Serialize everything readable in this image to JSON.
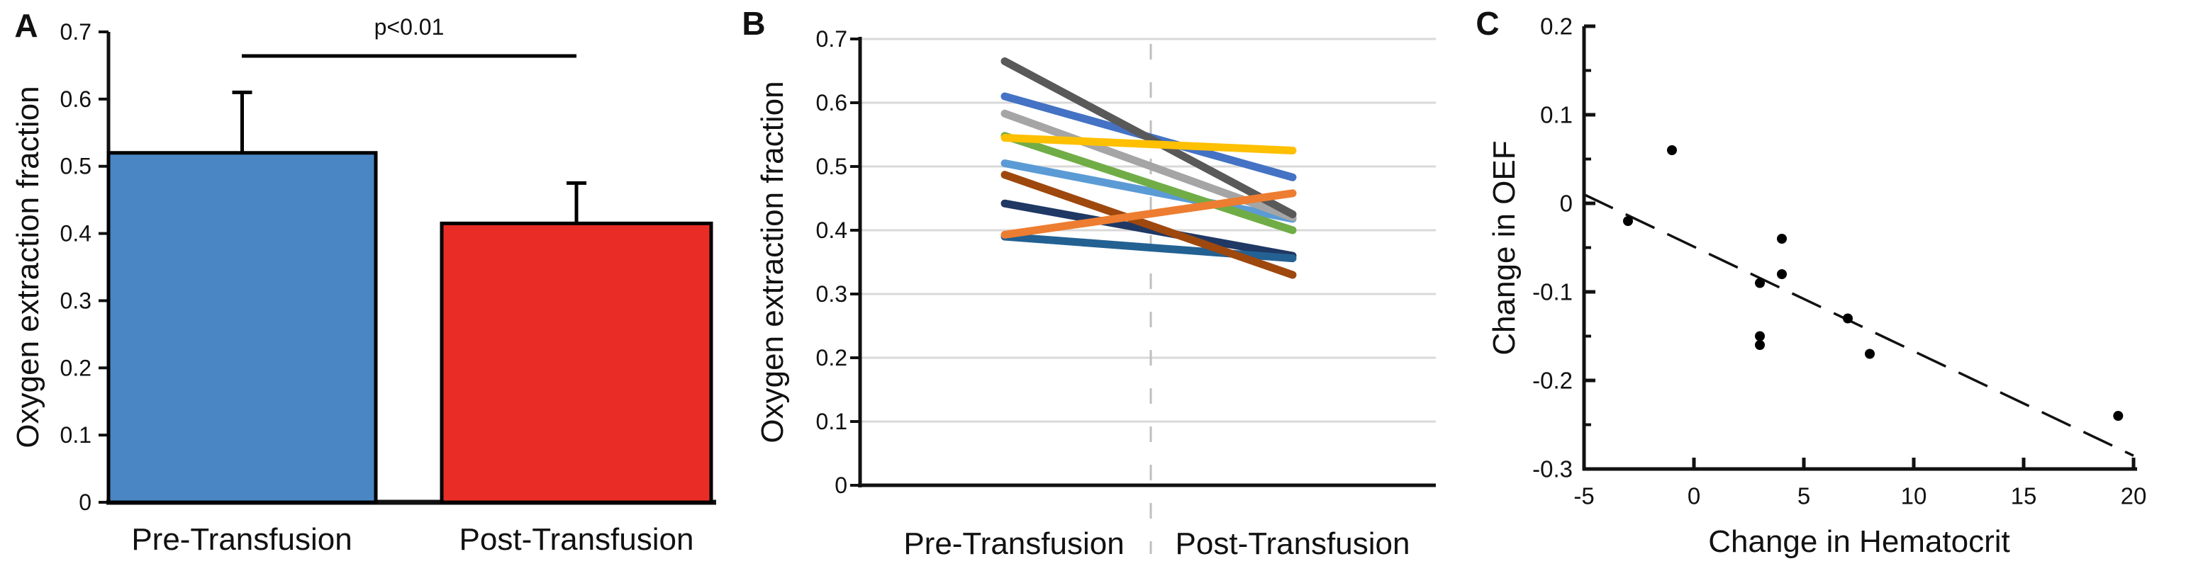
{
  "figure": {
    "background": "#FFFFFF",
    "text_color": "#111111"
  },
  "chart_data": [
    {
      "type": "bar",
      "panel": "A",
      "ylabel": "Oxygen extraction fraction",
      "categories": [
        "Pre-Transfusion",
        "Post-Transfusion"
      ],
      "values": [
        0.52,
        0.415
      ],
      "error_plus": [
        0.09,
        0.06
      ],
      "bar_colors": [
        "#4A86C4",
        "#E92D26"
      ],
      "bar_edge_color": "#000000",
      "significance_label": "p<0.01",
      "ylim": [
        0,
        0.7
      ],
      "yticks": [
        0,
        0.1,
        0.2,
        0.3,
        0.4,
        0.5,
        0.6,
        0.7
      ],
      "ytick_labels": [
        "0",
        "0.1",
        "0.2",
        "0.3",
        "0.4",
        "0.5",
        "0.6",
        "0.7"
      ],
      "grid": false
    },
    {
      "type": "line",
      "panel": "B",
      "ylabel": "Oxygen extraction fraction",
      "categories": [
        "Pre-Transfusion",
        "Post-Transfusion"
      ],
      "ylim": [
        0,
        0.7
      ],
      "yticks": [
        0,
        0.1,
        0.2,
        0.3,
        0.4,
        0.5,
        0.6,
        0.7
      ],
      "ytick_labels": [
        "0",
        "0.1",
        "0.2",
        "0.3",
        "0.4",
        "0.5",
        "0.6",
        "0.7"
      ],
      "grid": true,
      "grid_color": "#D9D9D9",
      "divider_color": "#BFBFBF",
      "series": [
        {
          "name": "subject-navy",
          "color": "#1F3864",
          "values": [
            0.442,
            0.36
          ]
        },
        {
          "name": "subject-steel-blue",
          "color": "#236192",
          "values": [
            0.39,
            0.356
          ]
        },
        {
          "name": "subject-brown",
          "color": "#9E480E",
          "values": [
            0.487,
            0.33
          ]
        },
        {
          "name": "subject-sky-blue",
          "color": "#5B9BD5",
          "values": [
            0.505,
            0.418
          ]
        },
        {
          "name": "subject-green",
          "color": "#70AD47",
          "values": [
            0.548,
            0.4
          ]
        },
        {
          "name": "subject-light-gray",
          "color": "#A5A5A5",
          "values": [
            0.583,
            0.42
          ]
        },
        {
          "name": "subject-blue",
          "color": "#4472C4",
          "values": [
            0.61,
            0.483
          ]
        },
        {
          "name": "subject-dark-gray",
          "color": "#595959",
          "values": [
            0.665,
            0.425
          ]
        },
        {
          "name": "subject-orange",
          "color": "#ED7D31",
          "values": [
            0.393,
            0.458
          ]
        },
        {
          "name": "subject-yellow",
          "color": "#FFC000",
          "values": [
            0.545,
            0.525
          ]
        }
      ]
    },
    {
      "type": "scatter",
      "panel": "C",
      "xlabel": "Change in Hematocrit",
      "ylabel": "Change in OEF",
      "xlim": [
        -5,
        20
      ],
      "ylim": [
        -0.3,
        0.2
      ],
      "xticks": [
        -5,
        0,
        5,
        10,
        15,
        20
      ],
      "xtick_labels": [
        "-5",
        "0",
        "5",
        "10",
        "15",
        "20"
      ],
      "yticks": [
        0.2,
        0.1,
        0,
        -0.1,
        -0.2,
        -0.3
      ],
      "ytick_labels": [
        "0.2",
        "0.1",
        "0",
        "-0.1",
        "-0.2",
        "-0.3"
      ],
      "yticks_minor": [
        0.15,
        0.05,
        -0.05,
        -0.15,
        -0.25
      ],
      "point_color": "#000000",
      "points": [
        [
          -3,
          -0.02
        ],
        [
          -1,
          0.06
        ],
        [
          3,
          -0.09
        ],
        [
          3,
          -0.15
        ],
        [
          3,
          -0.16
        ],
        [
          4,
          -0.04
        ],
        [
          4,
          -0.08
        ],
        [
          7,
          -0.13
        ],
        [
          8,
          -0.17
        ],
        [
          19.3,
          -0.24
        ]
      ],
      "trend_line": {
        "style": "dashed",
        "x": [
          -5,
          20
        ],
        "y": [
          0.01,
          -0.285
        ]
      },
      "grid": false
    }
  ]
}
